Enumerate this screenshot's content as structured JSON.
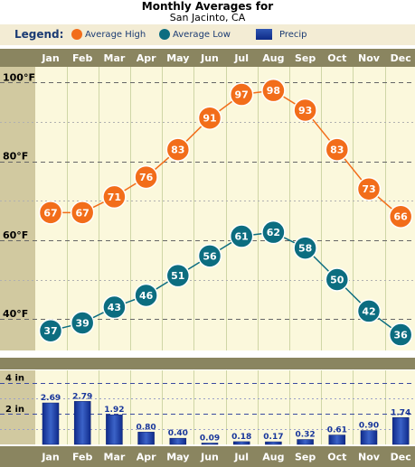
{
  "header": {
    "title": "Monthly Averages for",
    "subtitle": "San Jacinto, CA"
  },
  "legend": {
    "title": "Legend:",
    "high": "Average High",
    "low": "Average Low",
    "precip": "Precip"
  },
  "colors": {
    "high": "#f26d1a",
    "low": "#0c6d80",
    "precip": "#18369b",
    "band": "#8a8560",
    "plot_bg": "#fbf8dc"
  },
  "chart_data": [
    {
      "type": "line",
      "categories": [
        "Jan",
        "Feb",
        "Mar",
        "Apr",
        "May",
        "Jun",
        "Jul",
        "Aug",
        "Sep",
        "Oct",
        "Nov",
        "Dec"
      ],
      "series": [
        {
          "name": "Average High",
          "values": [
            67,
            67,
            71,
            76,
            83,
            91,
            97,
            98,
            93,
            83,
            73,
            66
          ]
        },
        {
          "name": "Average Low",
          "values": [
            37,
            39,
            43,
            46,
            51,
            56,
            61,
            62,
            58,
            50,
            42,
            36
          ]
        }
      ],
      "ytick_labels": [
        "100°F",
        "80°F",
        "60°F",
        "40°F"
      ],
      "ylim": [
        32,
        104
      ],
      "grid": true,
      "legend": "top"
    },
    {
      "type": "bar",
      "categories": [
        "Jan",
        "Feb",
        "Mar",
        "Apr",
        "May",
        "Jun",
        "Jul",
        "Aug",
        "Sep",
        "Oct",
        "Nov",
        "Dec"
      ],
      "series": [
        {
          "name": "Precip",
          "values": [
            2.69,
            2.79,
            1.92,
            0.8,
            0.4,
            0.09,
            0.18,
            0.17,
            0.32,
            0.61,
            0.9,
            1.74
          ]
        }
      ],
      "value_labels": [
        "2.69",
        "2.79",
        "1.92",
        "0.80",
        "0.40",
        "0.09",
        "0.18",
        "0.17",
        "0.32",
        "0.61",
        "0.90",
        "1.74"
      ],
      "ytick_labels": [
        "4 in",
        "2 in"
      ],
      "ylim": [
        0,
        4.8
      ],
      "grid": true
    }
  ]
}
